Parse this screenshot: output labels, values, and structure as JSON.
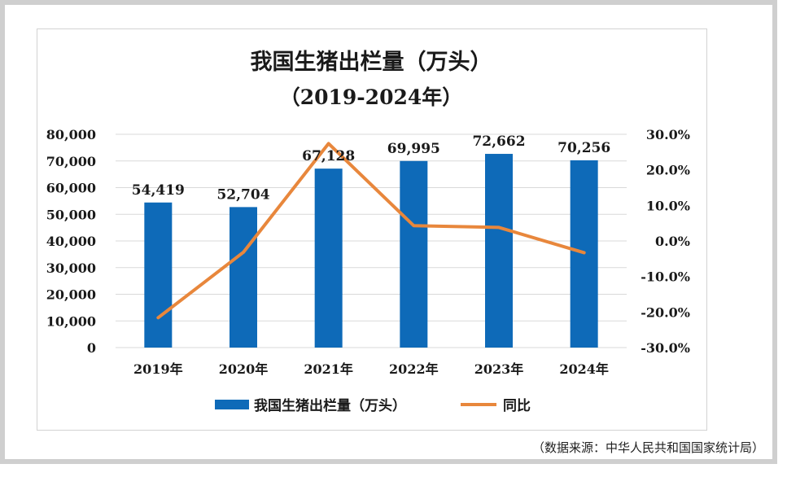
{
  "title": "我国生猪出栏量（万头）",
  "subtitle": "（2019-2024年）",
  "source": "（数据来源：中华人民共和国国家统计局）",
  "colors": {
    "bar": "#0e6ab8",
    "line": "#e8873c",
    "grid": "#d9d9d9",
    "text": "#1a1a1a"
  },
  "chart_data": {
    "type": "bar",
    "categories": [
      "2019年",
      "2020年",
      "2021年",
      "2022年",
      "2023年",
      "2024年"
    ],
    "series": [
      {
        "name": "我国生猪出栏量（万头）",
        "type": "bar",
        "axis": "left",
        "values": [
          54419,
          52704,
          67128,
          69995,
          72662,
          70256
        ],
        "value_labels": [
          "54,419",
          "52,704",
          "67,128",
          "69,995",
          "72,662",
          "70,256"
        ]
      },
      {
        "name": "同比",
        "type": "line",
        "axis": "right",
        "values": [
          -21.6,
          -3.2,
          27.4,
          4.3,
          3.8,
          -3.3
        ]
      }
    ],
    "y_left": {
      "min": 0,
      "max": 80000,
      "step": 10000,
      "ticks": [
        "0",
        "10,000",
        "20,000",
        "30,000",
        "40,000",
        "50,000",
        "60,000",
        "70,000",
        "80,000"
      ]
    },
    "y_right": {
      "min": -30,
      "max": 30,
      "step": 10,
      "ticks": [
        "-30.0%",
        "-20.0%",
        "-10.0%",
        "0.0%",
        "10.0%",
        "20.0%",
        "30.0%"
      ]
    },
    "grid": true,
    "legend_position": "bottom"
  }
}
